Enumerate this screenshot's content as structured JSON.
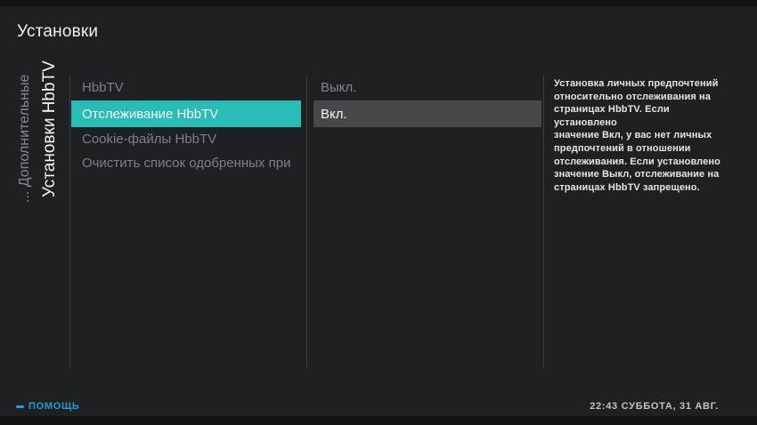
{
  "window": {
    "title": "Установки"
  },
  "sidebar": {
    "parent_label": "... Дополнительные",
    "current_label": "Установки HbbTV"
  },
  "menu": {
    "items": [
      {
        "label": "HbbTV",
        "selected": false
      },
      {
        "label": "Отслеживание HbbTV",
        "selected": true
      },
      {
        "label": "Cookie-файлы HbbTV",
        "selected": false
      },
      {
        "label": "Очистить список одобренных при",
        "selected": false,
        "truncated": true
      }
    ]
  },
  "values": {
    "options": [
      {
        "label": "Выкл.",
        "selected": false
      },
      {
        "label": "Вкл.",
        "selected": true
      }
    ]
  },
  "description": {
    "lines": [
      "Установка личных предпочтений",
      "относительно отслеживания на",
      "страницах HbbTV. Если установлено",
      "значение Вкл, у вас нет личных",
      "предпочтений в отношении",
      "отслеживания. Если установлено",
      "значение Выкл, отслеживание на",
      "страницах HbbTV запрещено."
    ]
  },
  "footer": {
    "help_label": "ПОМОЩЬ",
    "clock": "22:43 СУББОТА, 31 АВГ."
  },
  "colors": {
    "background": "#1e2022",
    "letterbox": "#111213",
    "accent_selected": "#2abcb6",
    "value_selected_bg": "#474849",
    "help_blue": "#1b9fd8",
    "muted_text": "#7e8284",
    "divider": "#3a3c3e"
  }
}
